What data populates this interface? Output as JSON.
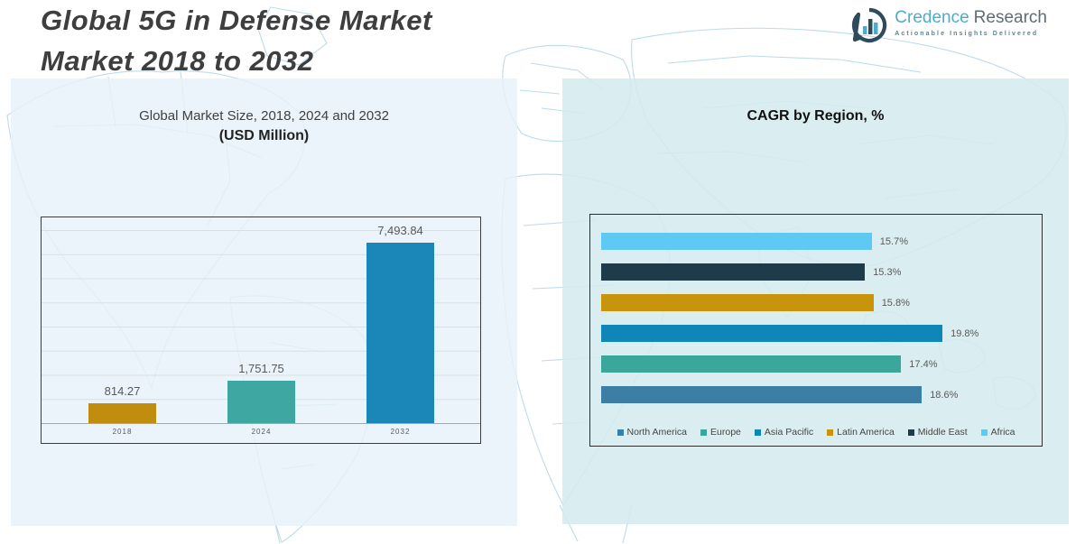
{
  "header": {
    "title_line1": "Global 5G in Defense Market",
    "title_line2": "Market 2018 to 2032",
    "logo": {
      "brand_primary": "Credence",
      "brand_secondary": "Research",
      "tagline": "Actionable Insights Delivered",
      "icon": "bar-chart-speech-bubble-icon"
    }
  },
  "colors": {
    "title_text": "#3e3e3e",
    "panel_left_bg": "#e6f1f9",
    "panel_right_bg": "#d5eaee",
    "map_line": "#bedbe9",
    "label_gray": "#595959",
    "brand_cyan": "#4badcb",
    "brand_gray": "#5d6c76"
  },
  "chart_data": [
    {
      "type": "bar",
      "title": "Global Market Size, 2018, 2024 and 2032",
      "subtitle": "(USD Million)",
      "categories": [
        "2018",
        "2024",
        "2032"
      ],
      "values": [
        814.27,
        1751.75,
        7493.84
      ],
      "value_labels": [
        "814.27",
        "1,751.75",
        "7,493.84"
      ],
      "bar_colors": [
        "#c18d0e",
        "#3fa7a2",
        "#1b87b8"
      ],
      "xlabel": "",
      "ylabel": "",
      "ylim": [
        0,
        8000
      ],
      "grid": true,
      "legend_position": "none"
    },
    {
      "type": "horizontal-bar",
      "title": "CAGR by Region, %",
      "categories_top_to_bottom": [
        "Africa",
        "Middle East",
        "Latin America",
        "Asia Pacific",
        "Europe",
        "North America"
      ],
      "values": [
        15.7,
        15.3,
        15.8,
        19.8,
        17.4,
        18.6
      ],
      "value_labels": [
        "15.7%",
        "15.3%",
        "15.8%",
        "19.8%",
        "17.4%",
        "18.6%"
      ],
      "bar_colors": [
        "#5ec9f3",
        "#1e3b49",
        "#c8940b",
        "#0e86b7",
        "#3aa79a",
        "#3d7ea6"
      ],
      "xlabel": "",
      "ylabel": "",
      "xlim": [
        0,
        21
      ],
      "grid": false,
      "legend_position": "bottom",
      "legend": [
        {
          "label": "North America",
          "color": "#3d7ea6"
        },
        {
          "label": "Europe",
          "color": "#3aa79a"
        },
        {
          "label": "Asia Pacific",
          "color": "#0e86b7"
        },
        {
          "label": "Latin America",
          "color": "#c8940b"
        },
        {
          "label": "Middle East",
          "color": "#1e3b49"
        },
        {
          "label": "Africa",
          "color": "#5ec9f3"
        }
      ]
    }
  ]
}
